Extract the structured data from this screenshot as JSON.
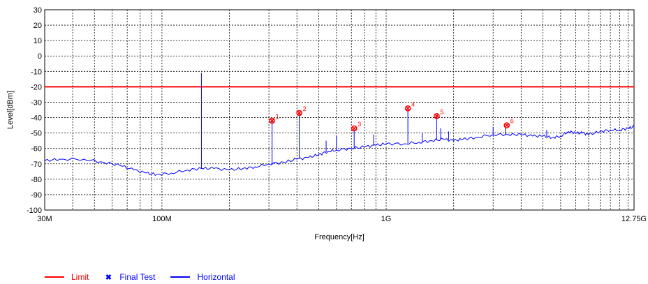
{
  "chart_data": {
    "type": "line",
    "xlabel": "Frequency[Hz]",
    "ylabel": "Level[dBm]",
    "x_scale": "log",
    "xlim": [
      30000000,
      12750000000
    ],
    "ylim": [
      -100,
      30
    ],
    "grid": true,
    "x_tick_labels": [
      {
        "value": 30000000,
        "label": "30M"
      },
      {
        "value": 100000000,
        "label": "100M"
      },
      {
        "value": 1000000000,
        "label": "1G"
      },
      {
        "value": 12750000000,
        "label": "12.75G"
      }
    ],
    "y_ticks": [
      30,
      20,
      10,
      0,
      -10,
      -20,
      -30,
      -40,
      -50,
      -60,
      -70,
      -80,
      -90,
      -100
    ],
    "limit": {
      "name": "Limit",
      "value": -20,
      "color": "#ff0000"
    },
    "series": [
      {
        "name": "Horizontal",
        "color": "#0000ff",
        "points": [
          [
            30000000,
            -68
          ],
          [
            35000000,
            -67
          ],
          [
            45000000,
            -67
          ],
          [
            55000000,
            -69
          ],
          [
            65000000,
            -71
          ],
          [
            75000000,
            -74
          ],
          [
            85000000,
            -76
          ],
          [
            95000000,
            -77
          ],
          [
            110000000,
            -76
          ],
          [
            130000000,
            -74
          ],
          [
            150000000,
            -73
          ],
          [
            170000000,
            -73
          ],
          [
            200000000,
            -74
          ],
          [
            230000000,
            -73
          ],
          [
            260000000,
            -72
          ],
          [
            300000000,
            -70
          ],
          [
            350000000,
            -69
          ],
          [
            400000000,
            -67
          ],
          [
            450000000,
            -66
          ],
          [
            500000000,
            -64
          ],
          [
            550000000,
            -62
          ],
          [
            600000000,
            -61
          ],
          [
            700000000,
            -60
          ],
          [
            800000000,
            -59
          ],
          [
            900000000,
            -58
          ],
          [
            1000000000,
            -57
          ],
          [
            1200000000,
            -57
          ],
          [
            1400000000,
            -56
          ],
          [
            1600000000,
            -55
          ],
          [
            1800000000,
            -54
          ],
          [
            2000000000,
            -55
          ],
          [
            2200000000,
            -54
          ],
          [
            2500000000,
            -53
          ],
          [
            3000000000,
            -51
          ],
          [
            3500000000,
            -51
          ],
          [
            4000000000,
            -51
          ],
          [
            4500000000,
            -52
          ],
          [
            5000000000,
            -52
          ],
          [
            5500000000,
            -53
          ],
          [
            6000000000,
            -52
          ],
          [
            6500000000,
            -49
          ],
          [
            7000000000,
            -50
          ],
          [
            7500000000,
            -50
          ],
          [
            8000000000,
            -51
          ],
          [
            9000000000,
            -49
          ],
          [
            10000000000,
            -48
          ],
          [
            11000000000,
            -48
          ],
          [
            12000000000,
            -47
          ],
          [
            12750000000,
            -46
          ]
        ],
        "spikes": [
          [
            150000000,
            -11
          ],
          [
            310000000,
            -42
          ],
          [
            410000000,
            -38
          ],
          [
            540000000,
            -55
          ],
          [
            600000000,
            -52
          ],
          [
            720000000,
            -48
          ],
          [
            880000000,
            -51
          ],
          [
            1250000000,
            -35
          ],
          [
            1450000000,
            -50
          ],
          [
            1680000000,
            -40
          ],
          [
            1750000000,
            -47
          ],
          [
            1900000000,
            -49
          ],
          [
            3000000000,
            -46
          ],
          [
            3400000000,
            -46
          ],
          [
            5200000000,
            -48
          ]
        ]
      }
    ],
    "final_test": {
      "name": "Final Test",
      "color": "#ff0000",
      "markers": [
        {
          "label": "1",
          "x": 310000000,
          "y": -42
        },
        {
          "label": "2",
          "x": 410000000,
          "y": -37
        },
        {
          "label": "3",
          "x": 720000000,
          "y": -47
        },
        {
          "label": "4",
          "x": 1250000000,
          "y": -34
        },
        {
          "label": "5",
          "x": 1680000000,
          "y": -39
        },
        {
          "label": "6",
          "x": 3450000000,
          "y": -45
        }
      ]
    }
  },
  "legend": {
    "limit_label": "Limit",
    "final_test_label": "Final Test",
    "horizontal_label": "Horizontal"
  }
}
